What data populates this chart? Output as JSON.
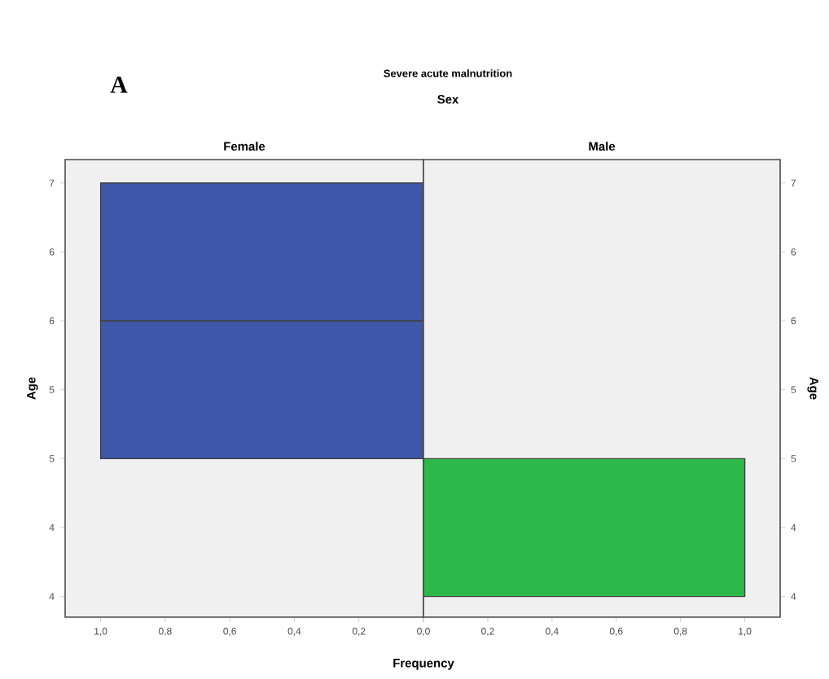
{
  "chart_data": [
    {
      "type": "histogram",
      "orientation": "horizontal",
      "title": "Female",
      "xlabel": "Frequency",
      "ylabel": "Age",
      "annotations": [
        "A",
        "Severe acute malnutrition",
        "Sex"
      ],
      "bins": [
        5,
        6,
        7
      ],
      "values": [
        1,
        1
      ],
      "color": "#3f57a8",
      "xlim": [
        1.11,
        0
      ],
      "xticks": [
        {
          "value": 1,
          "label": "1,0"
        },
        {
          "value": 0.8,
          "label": "0,8"
        },
        {
          "value": 0.6,
          "label": "0,6"
        },
        {
          "value": 0.4,
          "label": "0,4"
        },
        {
          "value": 0.2,
          "label": "0,2"
        },
        {
          "value": 0,
          "label": null
        }
      ],
      "ylim": [
        3.85,
        7.17
      ],
      "yticks": [
        4,
        {
          "value": 4.5,
          "label": "4"
        },
        5,
        {
          "value": 5.5,
          "label": "5"
        },
        6,
        {
          "value": 6.5,
          "label": "6"
        },
        7
      ],
      "grid": false
    },
    {
      "type": "histogram",
      "orientation": "horizontal",
      "title": "Male",
      "ylabel": "Age",
      "bins": [
        4,
        5
      ],
      "values": [
        1
      ],
      "color": "#2db84a",
      "xlim": [
        0,
        1.11
      ],
      "xticks": [
        {
          "value": 0,
          "label": "0,0"
        },
        {
          "value": 0.2,
          "label": "0,2"
        },
        {
          "value": 0.4,
          "label": "0,4"
        },
        {
          "value": 0.6,
          "label": "0,6"
        },
        {
          "value": 0.8,
          "label": "0,8"
        },
        {
          "value": 1,
          "label": "1,0"
        }
      ],
      "ylim": [
        3.85,
        7.17
      ],
      "yticks": [
        4,
        {
          "value": 4.5,
          "label": "4"
        },
        5,
        {
          "value": 5.5,
          "label": "5"
        },
        6,
        {
          "value": 6.5,
          "label": "6"
        },
        7
      ],
      "grid": false
    }
  ]
}
